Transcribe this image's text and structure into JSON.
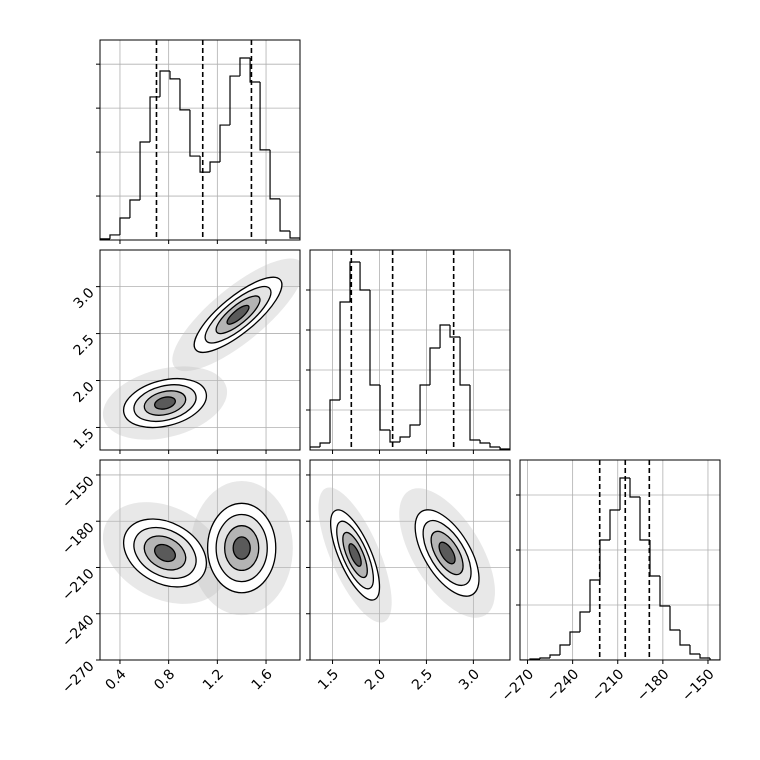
{
  "chart_data": [
    {
      "type": "histogram",
      "row": 0,
      "col": 0,
      "color": "#000000",
      "grid": true,
      "show_xtick_labels": false,
      "show_ytick_labels": false,
      "bins": [
        0.236,
        0.318,
        0.4,
        0.482,
        0.565,
        0.647,
        0.729,
        0.811,
        0.893,
        0.975,
        1.058,
        1.14,
        1.222,
        1.304,
        1.386,
        1.469,
        1.551,
        1.633,
        1.715,
        1.797,
        1.879
      ],
      "values": [
        5,
        23,
        100,
        182,
        446,
        651,
        769,
        733,
        592,
        382,
        309,
        355,
        523,
        746,
        828,
        719,
        410,
        187,
        41,
        9
      ],
      "quantiles": [
        0.7,
        1.08,
        1.48
      ],
      "xlim": [
        0.236,
        1.879
      ],
      "ylim": [
        0,
        910
      ],
      "xticks": [
        0.4,
        0.8,
        1.2,
        1.6
      ],
      "yticks": [
        200,
        400,
        600,
        800
      ]
    },
    {
      "type": "contour",
      "row": 1,
      "col": 0,
      "color": "#000000",
      "grid": true,
      "show_xtick_labels": false,
      "show_ytick_labels": true,
      "levels": [
        2,
        1.5,
        1,
        0.5
      ],
      "clusters": [
        {
          "mean": [
            0.77,
            1.76
          ],
          "sd": [
            0.17,
            0.13
          ],
          "rho": 0.3
        },
        {
          "mean": [
            1.37,
            2.7
          ],
          "sd": [
            0.18,
            0.2
          ],
          "rho": 0.8
        }
      ],
      "xlim": [
        0.236,
        1.879
      ],
      "ylim": [
        1.26,
        3.39
      ],
      "xticks": [
        0.4,
        0.8,
        1.2,
        1.6
      ],
      "yticks": [
        1.5,
        {
          "value": 2,
          "label": "2.0"
        },
        2.5,
        {
          "value": 3,
          "label": "3.0"
        }
      ]
    },
    {
      "type": "histogram",
      "row": 1,
      "col": 1,
      "color": "#000000",
      "grid": true,
      "show_xtick_labels": false,
      "show_ytick_labels": false,
      "bins": [
        1.26,
        1.367,
        1.473,
        1.58,
        1.686,
        1.793,
        1.899,
        2.006,
        2.112,
        2.219,
        2.325,
        2.432,
        2.538,
        2.645,
        2.751,
        2.858,
        2.964,
        3.071,
        3.177,
        3.284,
        3.39
      ],
      "values": [
        15,
        35,
        250,
        740,
        940,
        800,
        325,
        100,
        40,
        65,
        125,
        325,
        510,
        625,
        565,
        325,
        50,
        35,
        15,
        5
      ],
      "quantiles": [
        1.7,
        2.14,
        2.79
      ],
      "xlim": [
        1.26,
        3.39
      ],
      "ylim": [
        0,
        1000
      ],
      "xticks": [
        1.5,
        2,
        2.5,
        3
      ],
      "yticks": [
        200,
        400,
        600,
        800
      ]
    },
    {
      "type": "contour",
      "row": 2,
      "col": 0,
      "color": "#000000",
      "grid": true,
      "show_xtick_labels": true,
      "show_ytick_labels": true,
      "levels": [
        2,
        1.5,
        1,
        0.5
      ],
      "clusters": [
        {
          "mean": [
            0.77,
            -200.6
          ],
          "sd": [
            0.17,
            11
          ],
          "rho": -0.3
        },
        {
          "mean": [
            1.4,
            -197.4
          ],
          "sd": [
            0.14,
            14.5
          ],
          "rho": 0
        }
      ],
      "xlim": [
        0.236,
        1.879
      ],
      "ylim": [
        -270,
        -140.3
      ],
      "xticks": [
        0.4,
        0.8,
        1.2,
        1.6
      ],
      "yticks": [
        {
          "value": -270,
          "label": "−270"
        },
        {
          "value": -240,
          "label": "−240"
        },
        {
          "value": -210,
          "label": "−210"
        },
        {
          "value": -180,
          "label": "−180"
        },
        {
          "value": -150,
          "label": "−150"
        }
      ]
    },
    {
      "type": "contour",
      "row": 2,
      "col": 1,
      "color": "#000000",
      "grid": true,
      "show_xtick_labels": true,
      "show_ytick_labels": false,
      "levels": [
        2,
        1.5,
        1,
        0.5
      ],
      "clusters": [
        {
          "mean": [
            1.74,
            -201.9
          ],
          "sd": [
            0.13,
            14.6
          ],
          "rho": -0.7
        },
        {
          "mean": [
            2.72,
            -200.6
          ],
          "sd": [
            0.17,
            14
          ],
          "rho": -0.6
        }
      ],
      "xlim": [
        1.26,
        3.39
      ],
      "ylim": [
        -270,
        -140.3
      ],
      "xticks": [
        1.5,
        {
          "value": 2,
          "label": "2.0"
        },
        2.5,
        {
          "value": 3,
          "label": "3.0"
        }
      ],
      "yticks": [
        -270,
        -240,
        -210,
        -180,
        -150
      ]
    },
    {
      "type": "histogram",
      "row": 2,
      "col": 2,
      "color": "#000000",
      "grid": true,
      "show_xtick_labels": true,
      "show_ytick_labels": false,
      "bins": [
        -275,
        -268.35,
        -261.7,
        -255.05,
        -248.4,
        -241.75,
        -235.1,
        -228.45,
        -221.8,
        -215.15,
        -208.5,
        -201.85,
        -195.2,
        -188.55,
        -181.9,
        -175.25,
        -168.6,
        -161.95,
        -155.3,
        -148.65,
        -142
      ],
      "values": [
        0,
        5,
        10,
        25,
        75,
        140,
        240,
        400,
        600,
        750,
        910,
        815,
        600,
        420,
        270,
        150,
        75,
        30,
        10,
        0
      ],
      "quantiles": [
        -222,
        -205,
        -189
      ],
      "xlim": [
        -275,
        -142
      ],
      "ylim": [
        0,
        1000
      ],
      "xticks": [
        {
          "value": -270,
          "label": "−270"
        },
        {
          "value": -240,
          "label": "−240"
        },
        {
          "value": -210,
          "label": "−210"
        },
        {
          "value": -180,
          "label": "−180"
        },
        {
          "value": -150,
          "label": "−150"
        }
      ],
      "yticks": [
        275,
        550,
        825
      ]
    }
  ]
}
